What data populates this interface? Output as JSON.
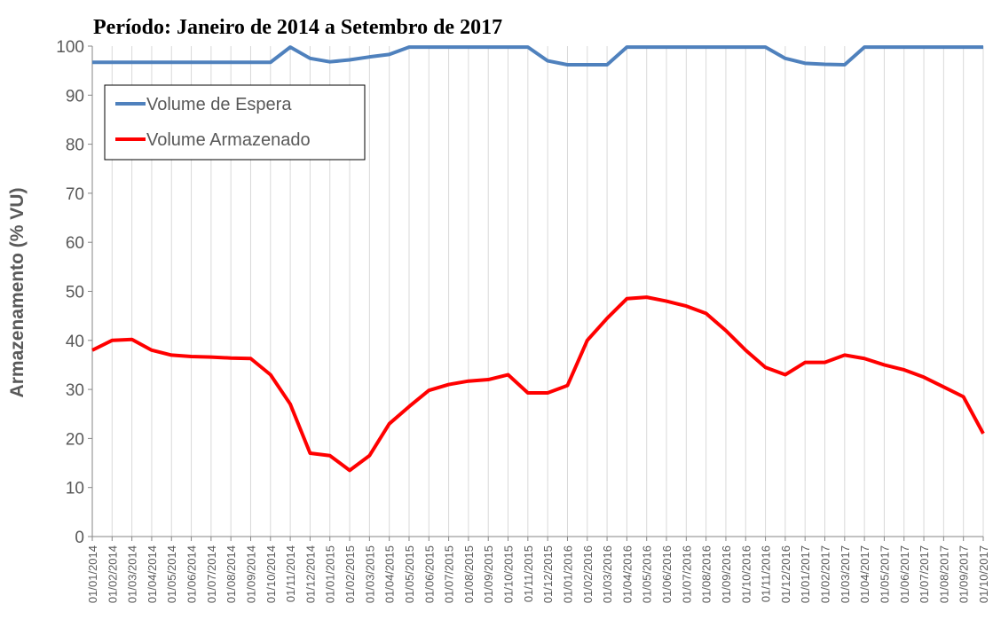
{
  "chart_data": {
    "type": "line",
    "title": "Período: Janeiro de 2014 a Setembro de 2017",
    "ylabel": "Armazenamento (% VU)",
    "categories": [
      "01/01/2014",
      "01/02/2014",
      "01/03/2014",
      "01/04/2014",
      "01/05/2014",
      "01/06/2014",
      "01/07/2014",
      "01/08/2014",
      "01/09/2014",
      "01/10/2014",
      "01/11/2014",
      "01/12/2014",
      "01/01/2015",
      "01/02/2015",
      "01/03/2015",
      "01/04/2015",
      "01/05/2015",
      "01/06/2015",
      "01/07/2015",
      "01/08/2015",
      "01/09/2015",
      "01/10/2015",
      "01/11/2015",
      "01/12/2015",
      "01/01/2016",
      "01/02/2016",
      "01/03/2016",
      "01/04/2016",
      "01/05/2016",
      "01/06/2016",
      "01/07/2016",
      "01/08/2016",
      "01/09/2016",
      "01/10/2016",
      "01/11/2016",
      "01/12/2016",
      "01/01/2017",
      "01/02/2017",
      "01/03/2017",
      "01/04/2017",
      "01/05/2017",
      "01/06/2017",
      "01/07/2017",
      "01/08/2017",
      "01/09/2017",
      "01/10/2017"
    ],
    "series": [
      {
        "name": "Volume de Espera",
        "color": "#4f81bd",
        "values": [
          96.7,
          96.7,
          96.7,
          96.7,
          96.7,
          96.7,
          96.7,
          96.7,
          96.7,
          96.7,
          99.8,
          97.5,
          96.8,
          97.2,
          97.8,
          98.3,
          99.8,
          99.8,
          99.8,
          99.8,
          99.8,
          99.8,
          99.8,
          97,
          96.2,
          96.2,
          96.2,
          99.8,
          99.8,
          99.8,
          99.8,
          99.8,
          99.8,
          99.8,
          99.8,
          97.5,
          96.5,
          96.3,
          96.2,
          99.8,
          99.8,
          99.8,
          99.8,
          99.8,
          99.8,
          99.8
        ]
      },
      {
        "name": "Volume Armazenado",
        "color": "#ff0000",
        "values": [
          38,
          40,
          40.2,
          38,
          37,
          36.7,
          36.6,
          36.4,
          36.3,
          33,
          27,
          17,
          16.5,
          13.5,
          16.5,
          23,
          26.5,
          29.8,
          31,
          31.7,
          32,
          33,
          29.3,
          29.3,
          30.8,
          40,
          44.5,
          48.5,
          48.8,
          48,
          47,
          45.5,
          42,
          38,
          34.5,
          33,
          35.5,
          35.5,
          37,
          36.3,
          35,
          34,
          32.5,
          30.5,
          28.5,
          21
        ]
      }
    ],
    "ylim": [
      0,
      100
    ],
    "yticks": [
      0,
      10,
      20,
      30,
      40,
      50,
      60,
      70,
      80,
      90,
      100
    ],
    "grid": "x",
    "legend": "upper left"
  }
}
